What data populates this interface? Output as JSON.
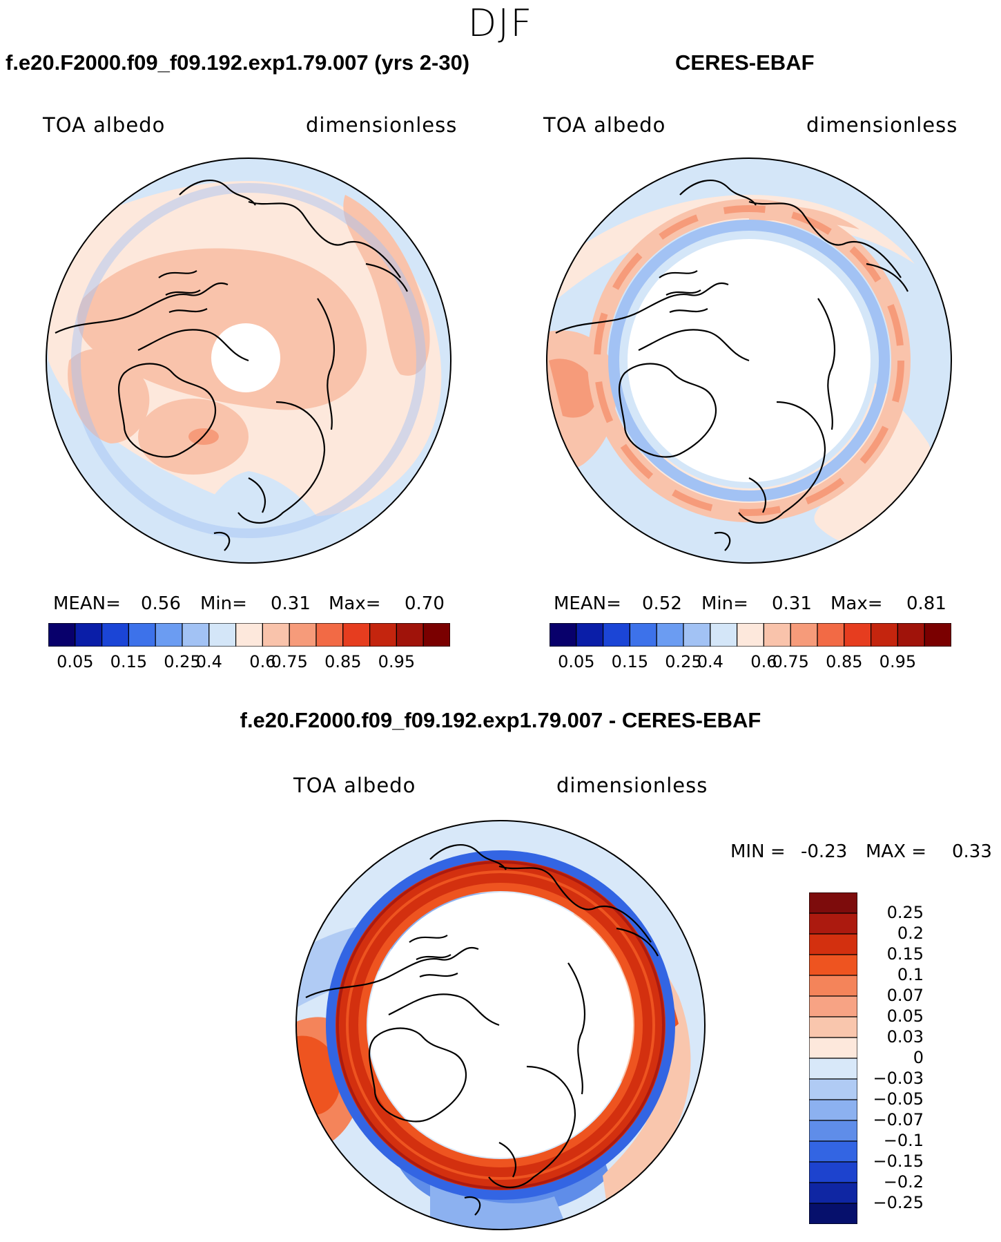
{
  "figure": {
    "title": "DJF",
    "variable": "TOA albedo",
    "units": "dimensionless",
    "panels": {
      "model": {
        "title": "f.e20.F2000.f09_f09.192.exp1.79.007 (yrs 2-30)",
        "mean_label": "MEAN=",
        "mean": "0.56",
        "min_label": "Min=",
        "min": "0.31",
        "max_label": "Max=",
        "max": "0.70"
      },
      "obs": {
        "title": "CERES-EBAF",
        "mean_label": "MEAN=",
        "mean": "0.52",
        "min_label": "Min=",
        "min": "0.31",
        "max_label": "Max=",
        "max": "0.81"
      },
      "diff": {
        "title": "f.e20.F2000.f09_f09.192.exp1.79.007 - CERES-EBAF",
        "min_label": "MIN =",
        "min": "-0.23",
        "max_label": "MAX =",
        "max": "0.33"
      }
    }
  },
  "colorbars": {
    "absolute": {
      "labels": [
        "0.05",
        "0.15",
        "0.25",
        "0.4",
        "0.6",
        "0.75",
        "0.85",
        "0.95"
      ],
      "colors": [
        "#08006b",
        "#0a1ea8",
        "#1b45d6",
        "#3d72ea",
        "#6b9cf2",
        "#a2c2f4",
        "#d4e6f8",
        "#fde8dc",
        "#f9c3ab",
        "#f69b7a",
        "#f26a45",
        "#e63d1f",
        "#c4250e",
        "#a0130a",
        "#7a0000"
      ]
    },
    "difference": {
      "labels": [
        "0.25",
        "0.2",
        "0.15",
        "0.1",
        "0.07",
        "0.05",
        "0.03",
        "0",
        "−0.03",
        "−0.05",
        "−0.07",
        "−0.1",
        "−0.15",
        "−0.2",
        "−0.25"
      ],
      "colors": [
        "#7d0c0c",
        "#ac1a0f",
        "#d3300f",
        "#ee5420",
        "#f4845a",
        "#f7a384",
        "#f9c6ad",
        "#fde8dc",
        "#d8e8f9",
        "#b0cbf4",
        "#8cb1f0",
        "#5f8de9",
        "#3365e3",
        "#1d43ce",
        "#0f26a3",
        "#06106c"
      ]
    }
  },
  "chart_data": [
    {
      "type": "heatmap",
      "title": "f.e20.F2000.f09_f09.192.exp1.79.007 (yrs 2-30)",
      "field": "TOA albedo",
      "units": "dimensionless",
      "season": "DJF",
      "projection": "north polar stereographic",
      "mean": 0.56,
      "min": 0.31,
      "max": 0.7,
      "contour_levels": [
        0.05,
        0.1,
        0.15,
        0.2,
        0.25,
        0.3,
        0.4,
        0.5,
        0.6,
        0.65,
        0.7,
        0.75,
        0.8,
        0.85,
        0.9,
        0.95
      ]
    },
    {
      "type": "heatmap",
      "title": "CERES-EBAF",
      "field": "TOA albedo",
      "units": "dimensionless",
      "season": "DJF",
      "projection": "north polar stereographic",
      "mean": 0.52,
      "min": 0.31,
      "max": 0.81,
      "contour_levels": [
        0.05,
        0.1,
        0.15,
        0.2,
        0.25,
        0.3,
        0.4,
        0.5,
        0.6,
        0.65,
        0.7,
        0.75,
        0.8,
        0.85,
        0.9,
        0.95
      ]
    },
    {
      "type": "heatmap",
      "title": "f.e20.F2000.f09_f09.192.exp1.79.007 - CERES-EBAF",
      "field": "TOA albedo",
      "units": "dimensionless",
      "season": "DJF",
      "projection": "north polar stereographic",
      "min": -0.23,
      "max": 0.33,
      "contour_levels": [
        -0.25,
        -0.2,
        -0.15,
        -0.1,
        -0.07,
        -0.05,
        -0.03,
        0,
        0.03,
        0.05,
        0.07,
        0.1,
        0.15,
        0.2,
        0.25
      ]
    }
  ]
}
